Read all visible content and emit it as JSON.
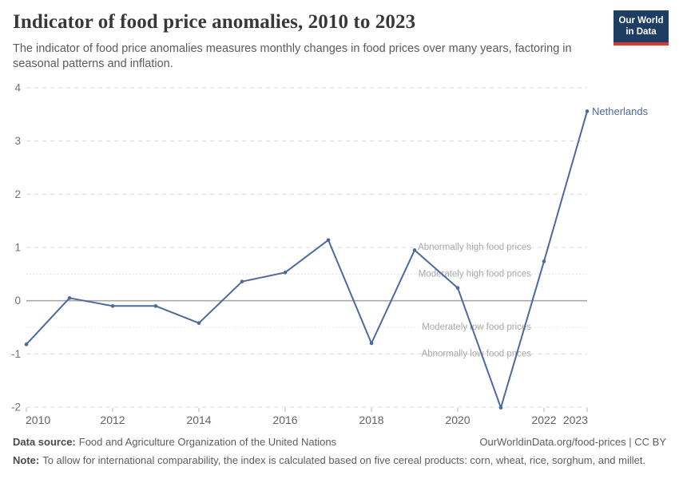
{
  "header": {
    "title": "Indicator of food price anomalies, 2010 to 2023",
    "subtitle": "The indicator of food price anomalies measures monthly changes in food prices over many years, factoring in seasonal patterns and inflation.",
    "logo": {
      "line1": "Our World",
      "line2": "in Data"
    }
  },
  "chart_data": {
    "type": "line",
    "title": "Indicator of food price anomalies, 2010 to 2023",
    "xlabel": "",
    "ylabel": "",
    "x": [
      2010,
      2011,
      2012,
      2013,
      2014,
      2015,
      2016,
      2017,
      2018,
      2019,
      2020,
      2021,
      2022,
      2023
    ],
    "series": [
      {
        "name": "Netherlands",
        "color": "#4c6a9c",
        "values": [
          -0.82,
          0.05,
          -0.1,
          -0.1,
          -0.42,
          0.36,
          0.53,
          1.14,
          -0.8,
          0.95,
          0.24,
          -2.01,
          0.74,
          3.56
        ]
      }
    ],
    "x_tick_labels": [
      2010,
      2012,
      2014,
      2016,
      2018,
      2020,
      2022,
      2023
    ],
    "y_ticks": [
      4,
      3,
      2,
      1,
      0,
      -1,
      -2
    ],
    "xlim": [
      2010,
      2023
    ],
    "ylim": [
      -2,
      4
    ],
    "grid": "horizontal-dashed",
    "legend_position": "end-of-line-label",
    "end_label": "Netherlands",
    "thresholds": [
      {
        "value": 1,
        "label": "Abnormally high food prices",
        "line_style": "dashed"
      },
      {
        "value": 0.5,
        "label": "Moderately high food prices",
        "line_style": "dotted"
      },
      {
        "value": -0.5,
        "label": "Moderately low food prices",
        "line_style": "dotted"
      },
      {
        "value": -1,
        "label": "Abnormally low food prices",
        "line_style": "dashed"
      }
    ]
  },
  "footer": {
    "data_source_label": "Data source:",
    "data_source": "Food and Agriculture Organization of the United Nations",
    "citation": "OurWorldinData.org/food-prices | CC BY",
    "note_label": "Note:",
    "note": "To allow for international comparability, the index is calculated based on five cereal products: corn, wheat, rice, sorghum, and millet."
  },
  "colors": {
    "series_blue": "#4c6a9c",
    "logo_bg": "#1d3d63",
    "logo_red": "#d93a34",
    "gridline": "#d8d8d8",
    "dotted_line": "#dcdcdc",
    "zero_line": "#a8a8a8",
    "tick_mark": "#b5b5b5",
    "y_axis_text": "#6f6f6f",
    "x_axis_text": "#636363",
    "annotation_text": "#a9a9a9"
  }
}
